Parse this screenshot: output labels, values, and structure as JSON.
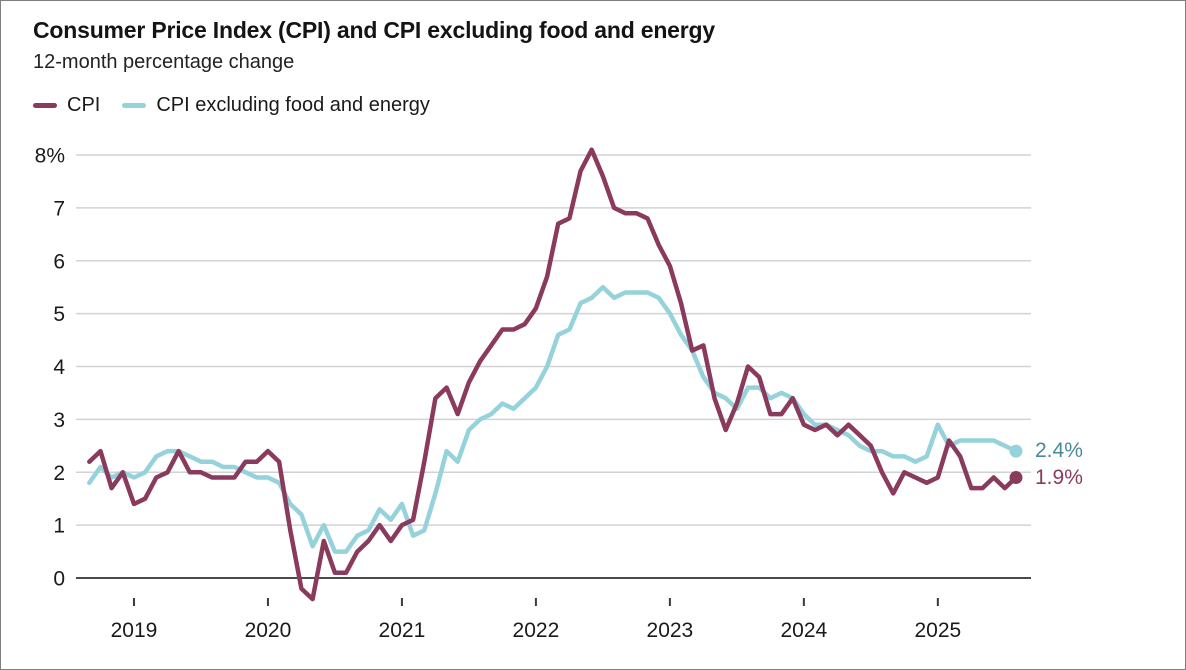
{
  "header": {
    "title": "Consumer Price Index (CPI) and CPI excluding food and energy",
    "subtitle": "12-month percentage change"
  },
  "legend": [
    {
      "label": "CPI",
      "color": "#8a3a5c"
    },
    {
      "label": "CPI excluding food and energy",
      "color": "#96d2db"
    }
  ],
  "end_labels": [
    {
      "text": "2.4%",
      "color": "#4a8a97"
    },
    {
      "text": "1.9%",
      "color": "#8a3a5c"
    }
  ],
  "chart_data": {
    "type": "line",
    "title": "Consumer Price Index (CPI) and CPI excluding food and energy",
    "subtitle": "12-month percentage change",
    "x_unit": "monthly",
    "x_start": "2018-09",
    "x_end": "2025-08",
    "x_tick_labels": [
      "2019",
      "2020",
      "2021",
      "2022",
      "2023",
      "2024",
      "2025"
    ],
    "x_tick_month_indices": [
      4,
      16,
      28,
      40,
      52,
      64,
      76
    ],
    "y_ticks": [
      0,
      1,
      2,
      3,
      4,
      5,
      6,
      7,
      8
    ],
    "y_top_tick_label": "8%",
    "ylim": [
      -0.6,
      8.4
    ],
    "grid": "horizontal",
    "legend_position": "top-left",
    "axis_color": "#4a4a4a",
    "grid_color": "#d2d2d2",
    "series": [
      {
        "name": "CPI excluding food and energy",
        "color": "#96d2db",
        "latest_value_label": "2.4%",
        "values": [
          1.8,
          2.1,
          1.9,
          2.0,
          1.9,
          2.0,
          2.3,
          2.4,
          2.4,
          2.3,
          2.2,
          2.2,
          2.1,
          2.1,
          2.0,
          1.9,
          1.9,
          1.8,
          1.4,
          1.2,
          0.6,
          1.0,
          0.5,
          0.5,
          0.8,
          0.9,
          1.3,
          1.1,
          1.4,
          0.8,
          0.9,
          1.6,
          2.4,
          2.2,
          2.8,
          3.0,
          3.1,
          3.3,
          3.2,
          3.4,
          3.6,
          4.0,
          4.6,
          4.7,
          5.2,
          5.3,
          5.5,
          5.3,
          5.4,
          5.4,
          5.4,
          5.3,
          5.0,
          4.6,
          4.3,
          3.8,
          3.5,
          3.4,
          3.2,
          3.6,
          3.6,
          3.4,
          3.5,
          3.4,
          3.1,
          2.9,
          2.9,
          2.8,
          2.7,
          2.5,
          2.4,
          2.4,
          2.3,
          2.3,
          2.2,
          2.3,
          2.9,
          2.5,
          2.6,
          2.6,
          2.6,
          2.6,
          2.5,
          2.4
        ]
      },
      {
        "name": "CPI",
        "color": "#8a3a5c",
        "latest_value_label": "1.9%",
        "values": [
          2.2,
          2.4,
          1.7,
          2.0,
          1.4,
          1.5,
          1.9,
          2.0,
          2.4,
          2.0,
          2.0,
          1.9,
          1.9,
          1.9,
          2.2,
          2.2,
          2.4,
          2.2,
          0.9,
          -0.2,
          -0.4,
          0.7,
          0.1,
          0.1,
          0.5,
          0.7,
          1.0,
          0.7,
          1.0,
          1.1,
          2.2,
          3.4,
          3.6,
          3.1,
          3.7,
          4.1,
          4.4,
          4.7,
          4.7,
          4.8,
          5.1,
          5.7,
          6.7,
          6.8,
          7.7,
          8.1,
          7.6,
          7.0,
          6.9,
          6.9,
          6.8,
          6.3,
          5.9,
          5.2,
          4.3,
          4.4,
          3.4,
          2.8,
          3.3,
          4.0,
          3.8,
          3.1,
          3.1,
          3.4,
          2.9,
          2.8,
          2.9,
          2.7,
          2.9,
          2.7,
          2.5,
          2.0,
          1.6,
          2.0,
          1.9,
          1.8,
          1.9,
          2.6,
          2.3,
          1.7,
          1.7,
          1.9,
          1.7,
          1.9
        ]
      }
    ]
  }
}
